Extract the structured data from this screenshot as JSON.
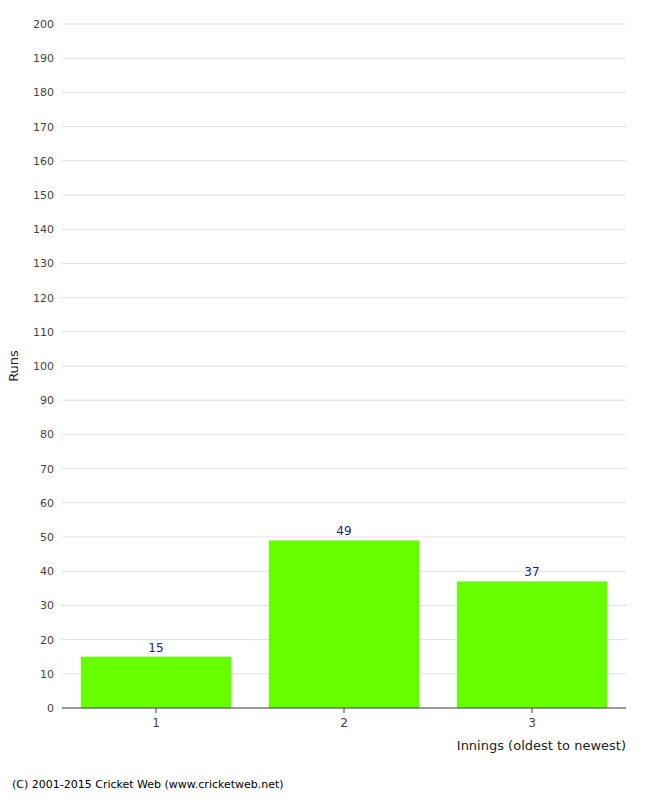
{
  "chart_data": {
    "type": "bar",
    "categories": [
      "1",
      "2",
      "3"
    ],
    "values": [
      15,
      49,
      37
    ],
    "color": "#66ff00",
    "xlabel": "Innings (oldest to newest)",
    "ylabel": "Runs",
    "ylim": [
      0,
      200
    ],
    "yticks": [
      0,
      10,
      20,
      30,
      40,
      50,
      60,
      70,
      80,
      90,
      100,
      110,
      120,
      130,
      140,
      150,
      160,
      170,
      180,
      190,
      200
    ],
    "grid": true,
    "data_labels": true,
    "annotations": [
      "(C) 2001-2015 Cricket Web (www.cricketweb.net)"
    ]
  }
}
